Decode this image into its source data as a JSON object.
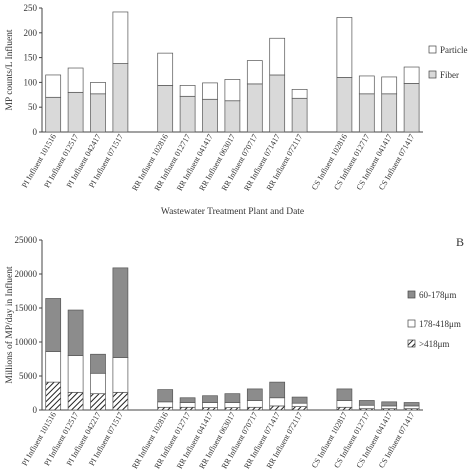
{
  "chart_data": [
    {
      "type": "bar",
      "stacked": true,
      "panel_label": "",
      "ylabel": "MP counts/L Influent",
      "xlabel": "Wastewater Treatment Plant and Date",
      "ylim": [
        0,
        250
      ],
      "yticks": [
        0,
        50,
        100,
        150,
        200,
        250
      ],
      "categories": [
        "PI Influent 101516",
        "PI Influent 012517",
        "PI Influent 042417",
        "PI Influent 071517",
        "",
        "RR Influent 102816",
        "RR Influent 012717",
        "RR Influent 041417",
        "RR Influent 063017",
        "RR Influent 070717",
        "RR Influent 071417",
        "RR Influent 072117",
        "",
        "CS Influent 102816",
        "CS Influent 012717",
        "CS Influent 041417",
        "CS Influent 071417"
      ],
      "series": [
        {
          "name": "Fiber",
          "color": "#d9d9d9",
          "values": [
            70,
            80,
            77,
            138,
            null,
            94,
            72,
            66,
            63,
            97,
            115,
            68,
            null,
            110,
            77,
            77,
            98
          ]
        },
        {
          "name": "Particle",
          "color": "#ffffff",
          "values": [
            45,
            49,
            23,
            104,
            null,
            65,
            22,
            33,
            43,
            47,
            74,
            18,
            null,
            121,
            36,
            34,
            33
          ]
        }
      ],
      "legend_position": "right",
      "grid": false
    },
    {
      "type": "bar",
      "stacked": true,
      "panel_label": "B",
      "ylabel": "Millions of MP/day in Influent",
      "xlabel": "",
      "ylim": [
        0,
        25000
      ],
      "yticks": [
        0,
        5000,
        10000,
        15000,
        20000,
        25000
      ],
      "categories": [
        "PI Influent 101516",
        "PI Influent 012517",
        "PI Influent 042217",
        "PI Influent 071517",
        "",
        "RR Influent 102816",
        "RR Influent 012717",
        "RR Influent 041417",
        "RR Influent 063017",
        "RR Influent 070717",
        "RR Influent 071417",
        "RR Influent 072117",
        "",
        "CS Influent 102817",
        "CS Influent 012717",
        "CS Influent 041417",
        "CS Influent 071417"
      ],
      "series": [
        {
          "name": ">418μm",
          "color": "#hatch",
          "values": [
            4100,
            2600,
            2400,
            2600,
            null,
            400,
            400,
            350,
            350,
            400,
            600,
            500,
            null,
            400,
            200,
            200,
            200
          ]
        },
        {
          "name": "178-418μm",
          "color": "#ffffff",
          "values": [
            4500,
            5400,
            3000,
            5100,
            null,
            800,
            700,
            750,
            750,
            1000,
            1200,
            500,
            null,
            1000,
            500,
            400,
            400
          ]
        },
        {
          "name": "60-178μm",
          "color": "#8c8c8c",
          "values": [
            7800,
            6700,
            2800,
            13200,
            null,
            1800,
            700,
            1000,
            1300,
            1700,
            2300,
            900,
            null,
            1700,
            700,
            600,
            500
          ]
        }
      ],
      "legend_position": "right",
      "grid": false
    }
  ]
}
